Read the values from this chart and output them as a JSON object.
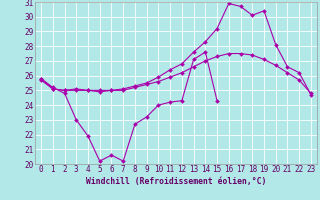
{
  "xlabel": "Windchill (Refroidissement éolien,°C)",
  "background_color": "#b2e8e8",
  "line_color": "#aa00aa",
  "grid_color": "#ffffff",
  "hours": [
    0,
    1,
    2,
    3,
    4,
    5,
    6,
    7,
    8,
    9,
    10,
    11,
    12,
    13,
    14,
    15,
    16,
    17,
    18,
    19,
    20,
    21,
    22,
    23
  ],
  "line1": [
    25.8,
    25.2,
    24.8,
    23.0,
    21.9,
    20.2,
    20.6,
    20.2,
    22.7,
    23.2,
    24.0,
    24.2,
    24.3,
    27.1,
    27.6,
    24.3,
    null,
    null,
    null,
    null,
    null,
    null,
    null,
    null
  ],
  "line2": [
    25.7,
    25.1,
    25.0,
    25.0,
    25.0,
    24.9,
    25.0,
    25.0,
    25.2,
    25.4,
    25.6,
    25.9,
    26.2,
    26.6,
    27.0,
    27.3,
    27.5,
    27.5,
    27.4,
    27.1,
    26.7,
    26.2,
    25.7,
    24.8
  ],
  "line3": [
    25.8,
    25.1,
    25.0,
    25.1,
    25.0,
    25.0,
    25.0,
    25.1,
    25.3,
    25.5,
    25.9,
    26.4,
    26.8,
    27.6,
    28.3,
    29.2,
    30.9,
    30.7,
    30.1,
    30.4,
    28.1,
    26.6,
    26.2,
    24.7
  ],
  "ylim": [
    20,
    31
  ],
  "yticks": [
    20,
    21,
    22,
    23,
    24,
    25,
    26,
    27,
    28,
    29,
    30,
    31
  ],
  "xticks": [
    0,
    1,
    2,
    3,
    4,
    5,
    6,
    7,
    8,
    9,
    10,
    11,
    12,
    13,
    14,
    15,
    16,
    17,
    18,
    19,
    20,
    21,
    22,
    23
  ],
  "tick_fontsize": 5.5,
  "xlabel_fontsize": 5.8,
  "marker_size": 2.0,
  "linewidth": 0.8
}
